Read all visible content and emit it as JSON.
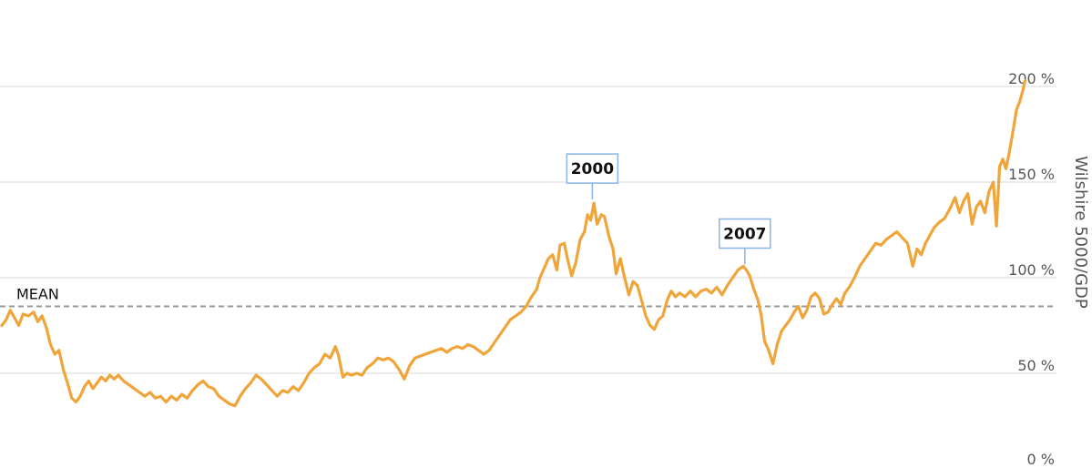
{
  "chart_data": {
    "type": "line",
    "title": "",
    "xlabel": "",
    "ylabel": "Wilshire 5000/GDP",
    "ylim": [
      0,
      210
    ],
    "yticks": [
      0,
      50,
      100,
      150,
      200
    ],
    "ytick_labels": [
      "0 %",
      "50 %",
      "100 %",
      "150 %",
      "200 %"
    ],
    "grid": true,
    "legend": "none",
    "line_color": "#f0a53a",
    "mean": {
      "label": "MEAN",
      "value": 85,
      "color": "#999999"
    },
    "annotations": [
      {
        "label": "2000",
        "x": 0.5575,
        "y": 139
      },
      {
        "label": "2007",
        "x": 0.7015,
        "y": 105
      }
    ],
    "series": [
      {
        "values": [
          [
            0.0,
            75
          ],
          [
            0.004,
            78
          ],
          [
            0.008,
            83
          ],
          [
            0.012,
            79
          ],
          [
            0.016,
            75
          ],
          [
            0.02,
            81
          ],
          [
            0.025,
            80
          ],
          [
            0.03,
            82
          ],
          [
            0.034,
            77
          ],
          [
            0.038,
            80
          ],
          [
            0.042,
            74
          ],
          [
            0.046,
            65
          ],
          [
            0.05,
            60
          ],
          [
            0.054,
            62
          ],
          [
            0.058,
            52
          ],
          [
            0.062,
            45
          ],
          [
            0.066,
            37
          ],
          [
            0.07,
            35
          ],
          [
            0.074,
            38
          ],
          [
            0.078,
            43
          ],
          [
            0.082,
            46
          ],
          [
            0.086,
            42
          ],
          [
            0.09,
            45
          ],
          [
            0.094,
            48
          ],
          [
            0.098,
            46
          ],
          [
            0.102,
            49
          ],
          [
            0.106,
            47
          ],
          [
            0.11,
            49
          ],
          [
            0.115,
            46
          ],
          [
            0.12,
            44
          ],
          [
            0.125,
            42
          ],
          [
            0.13,
            40
          ],
          [
            0.135,
            38
          ],
          [
            0.14,
            40
          ],
          [
            0.145,
            37
          ],
          [
            0.15,
            38
          ],
          [
            0.155,
            35
          ],
          [
            0.16,
            38
          ],
          [
            0.165,
            36
          ],
          [
            0.17,
            39
          ],
          [
            0.175,
            37
          ],
          [
            0.18,
            41
          ],
          [
            0.185,
            44
          ],
          [
            0.19,
            46
          ],
          [
            0.195,
            43
          ],
          [
            0.2,
            42
          ],
          [
            0.205,
            38
          ],
          [
            0.21,
            36
          ],
          [
            0.215,
            34
          ],
          [
            0.22,
            33
          ],
          [
            0.225,
            38
          ],
          [
            0.23,
            42
          ],
          [
            0.235,
            45
          ],
          [
            0.24,
            49
          ],
          [
            0.245,
            47
          ],
          [
            0.25,
            44
          ],
          [
            0.255,
            41
          ],
          [
            0.26,
            38
          ],
          [
            0.265,
            41
          ],
          [
            0.27,
            40
          ],
          [
            0.275,
            43
          ],
          [
            0.28,
            41
          ],
          [
            0.285,
            45
          ],
          [
            0.29,
            50
          ],
          [
            0.295,
            53
          ],
          [
            0.3,
            55
          ],
          [
            0.305,
            60
          ],
          [
            0.31,
            58
          ],
          [
            0.315,
            64
          ],
          [
            0.318,
            59
          ],
          [
            0.322,
            48
          ],
          [
            0.326,
            50
          ],
          [
            0.33,
            49
          ],
          [
            0.335,
            50
          ],
          [
            0.34,
            49
          ],
          [
            0.345,
            53
          ],
          [
            0.35,
            55
          ],
          [
            0.355,
            58
          ],
          [
            0.36,
            57
          ],
          [
            0.365,
            58
          ],
          [
            0.37,
            56
          ],
          [
            0.375,
            52
          ],
          [
            0.38,
            47
          ],
          [
            0.385,
            54
          ],
          [
            0.39,
            58
          ],
          [
            0.395,
            59
          ],
          [
            0.4,
            60
          ],
          [
            0.405,
            61
          ],
          [
            0.41,
            62
          ],
          [
            0.415,
            63
          ],
          [
            0.42,
            61
          ],
          [
            0.425,
            63
          ],
          [
            0.43,
            64
          ],
          [
            0.435,
            63
          ],
          [
            0.44,
            65
          ],
          [
            0.445,
            64
          ],
          [
            0.45,
            62
          ],
          [
            0.455,
            60
          ],
          [
            0.46,
            62
          ],
          [
            0.465,
            66
          ],
          [
            0.47,
            70
          ],
          [
            0.475,
            74
          ],
          [
            0.48,
            78
          ],
          [
            0.485,
            80
          ],
          [
            0.49,
            82
          ],
          [
            0.495,
            85
          ],
          [
            0.5,
            90
          ],
          [
            0.505,
            94
          ],
          [
            0.508,
            100
          ],
          [
            0.512,
            105
          ],
          [
            0.516,
            110
          ],
          [
            0.52,
            112
          ],
          [
            0.524,
            104
          ],
          [
            0.527,
            117
          ],
          [
            0.531,
            118
          ],
          [
            0.534,
            110
          ],
          [
            0.538,
            101
          ],
          [
            0.542,
            108
          ],
          [
            0.546,
            120
          ],
          [
            0.55,
            124
          ],
          [
            0.553,
            133
          ],
          [
            0.556,
            130
          ],
          [
            0.559,
            139
          ],
          [
            0.562,
            128
          ],
          [
            0.566,
            133
          ],
          [
            0.569,
            132
          ],
          [
            0.573,
            122
          ],
          [
            0.577,
            115
          ],
          [
            0.58,
            102
          ],
          [
            0.584,
            110
          ],
          [
            0.588,
            100
          ],
          [
            0.592,
            91
          ],
          [
            0.596,
            98
          ],
          [
            0.6,
            96
          ],
          [
            0.604,
            88
          ],
          [
            0.608,
            80
          ],
          [
            0.612,
            75
          ],
          [
            0.616,
            73
          ],
          [
            0.62,
            78
          ],
          [
            0.624,
            80
          ],
          [
            0.628,
            88
          ],
          [
            0.632,
            93
          ],
          [
            0.636,
            90
          ],
          [
            0.64,
            92
          ],
          [
            0.645,
            90
          ],
          [
            0.65,
            93
          ],
          [
            0.655,
            90
          ],
          [
            0.66,
            93
          ],
          [
            0.665,
            94
          ],
          [
            0.67,
            92
          ],
          [
            0.675,
            95
          ],
          [
            0.68,
            91
          ],
          [
            0.685,
            96
          ],
          [
            0.69,
            100
          ],
          [
            0.695,
            104
          ],
          [
            0.7,
            106
          ],
          [
            0.703,
            104
          ],
          [
            0.706,
            101
          ],
          [
            0.71,
            94
          ],
          [
            0.714,
            88
          ],
          [
            0.717,
            80
          ],
          [
            0.72,
            67
          ],
          [
            0.724,
            62
          ],
          [
            0.728,
            55
          ],
          [
            0.732,
            65
          ],
          [
            0.736,
            72
          ],
          [
            0.74,
            75
          ],
          [
            0.744,
            78
          ],
          [
            0.748,
            82
          ],
          [
            0.752,
            85
          ],
          [
            0.756,
            79
          ],
          [
            0.76,
            83
          ],
          [
            0.764,
            90
          ],
          [
            0.768,
            92
          ],
          [
            0.772,
            89
          ],
          [
            0.776,
            81
          ],
          [
            0.78,
            82
          ],
          [
            0.784,
            86
          ],
          [
            0.788,
            89
          ],
          [
            0.792,
            86
          ],
          [
            0.796,
            92
          ],
          [
            0.8,
            95
          ],
          [
            0.805,
            100
          ],
          [
            0.81,
            106
          ],
          [
            0.815,
            110
          ],
          [
            0.82,
            114
          ],
          [
            0.825,
            118
          ],
          [
            0.83,
            117
          ],
          [
            0.835,
            120
          ],
          [
            0.84,
            122
          ],
          [
            0.845,
            124
          ],
          [
            0.85,
            121
          ],
          [
            0.855,
            118
          ],
          [
            0.86,
            106
          ],
          [
            0.864,
            115
          ],
          [
            0.868,
            112
          ],
          [
            0.872,
            118
          ],
          [
            0.876,
            122
          ],
          [
            0.88,
            126
          ],
          [
            0.885,
            129
          ],
          [
            0.89,
            131
          ],
          [
            0.895,
            136
          ],
          [
            0.9,
            142
          ],
          [
            0.904,
            134
          ],
          [
            0.908,
            140
          ],
          [
            0.912,
            144
          ],
          [
            0.916,
            128
          ],
          [
            0.92,
            137
          ],
          [
            0.924,
            140
          ],
          [
            0.928,
            134
          ],
          [
            0.932,
            145
          ],
          [
            0.936,
            150
          ],
          [
            0.939,
            127
          ],
          [
            0.942,
            158
          ],
          [
            0.945,
            162
          ],
          [
            0.948,
            157
          ],
          [
            0.951,
            165
          ],
          [
            0.955,
            178
          ],
          [
            0.958,
            188
          ],
          [
            0.961,
            192
          ],
          [
            0.964,
            198
          ],
          [
            0.966,
            203
          ]
        ]
      }
    ]
  }
}
